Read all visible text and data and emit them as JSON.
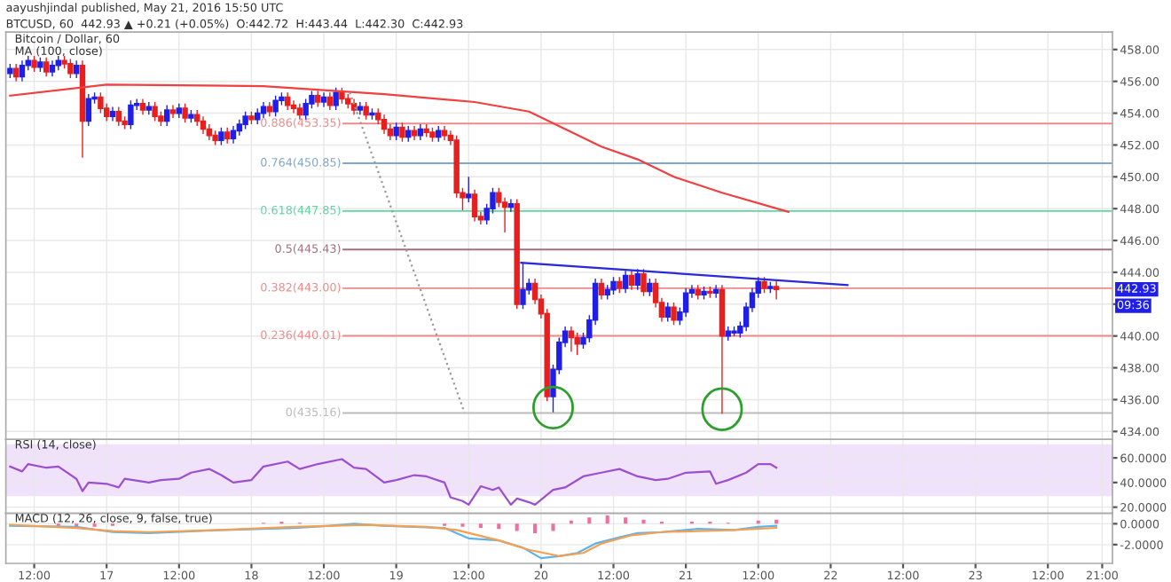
{
  "chart_data": [
    {
      "type": "candlestick",
      "title": "Bitcoin / Dollar, 60",
      "subtitle": "MA (100, close)",
      "annotations": [
        "aayushjindal published, May 21, 2016 15:50 UTC",
        "BTCUSD, 60  442.93 ▲ +0.21 (+0.05%)  O:442.72  H:443.44  L:442.30  C:442.93",
        {
          "text": "442.93",
          "y": 442.93
        },
        {
          "text": "09:36",
          "y": 441.9
        }
      ],
      "x": [
        "2016-05-16T08:00",
        "2016-05-16T09:00",
        "2016-05-16T10:00",
        "2016-05-16T11:00",
        "2016-05-16T12:00",
        "2016-05-16T13:00",
        "2016-05-16T14:00",
        "2016-05-16T15:00",
        "2016-05-16T16:00",
        "2016-05-16T17:00",
        "2016-05-16T18:00",
        "2016-05-16T19:00",
        "2016-05-16T20:00",
        "2016-05-16T21:00",
        "2016-05-16T22:00",
        "2016-05-16T23:00",
        "2016-05-17T00:00",
        "2016-05-17T01:00",
        "2016-05-17T02:00",
        "2016-05-17T03:00",
        "2016-05-17T04:00",
        "2016-05-17T05:00",
        "2016-05-17T06:00",
        "2016-05-17T07:00",
        "2016-05-17T08:00",
        "2016-05-17T09:00",
        "2016-05-17T10:00",
        "2016-05-17T11:00",
        "2016-05-17T12:00",
        "2016-05-17T13:00",
        "2016-05-17T14:00",
        "2016-05-17T15:00",
        "2016-05-17T16:00",
        "2016-05-17T17:00",
        "2016-05-17T18:00",
        "2016-05-17T19:00",
        "2016-05-17T20:00",
        "2016-05-17T21:00",
        "2016-05-17T22:00",
        "2016-05-17T23:00",
        "2016-05-18T00:00",
        "2016-05-18T01:00",
        "2016-05-18T02:00",
        "2016-05-18T03:00",
        "2016-05-18T04:00",
        "2016-05-18T05:00",
        "2016-05-18T06:00",
        "2016-05-18T07:00",
        "2016-05-18T08:00",
        "2016-05-18T09:00",
        "2016-05-18T10:00",
        "2016-05-18T11:00",
        "2016-05-18T12:00",
        "2016-05-18T13:00",
        "2016-05-18T14:00",
        "2016-05-18T15:00",
        "2016-05-18T16:00",
        "2016-05-18T17:00",
        "2016-05-18T18:00",
        "2016-05-18T19:00",
        "2016-05-18T20:00",
        "2016-05-18T21:00",
        "2016-05-18T22:00",
        "2016-05-18T23:00",
        "2016-05-19T00:00",
        "2016-05-19T01:00",
        "2016-05-19T02:00",
        "2016-05-19T03:00",
        "2016-05-19T04:00",
        "2016-05-19T05:00",
        "2016-05-19T06:00",
        "2016-05-19T07:00",
        "2016-05-19T08:00",
        "2016-05-19T09:00",
        "2016-05-19T10:00",
        "2016-05-19T11:00",
        "2016-05-19T12:00",
        "2016-05-19T13:00",
        "2016-05-19T14:00",
        "2016-05-19T15:00",
        "2016-05-19T16:00",
        "2016-05-19T17:00",
        "2016-05-19T18:00",
        "2016-05-19T19:00",
        "2016-05-19T20:00",
        "2016-05-19T21:00",
        "2016-05-19T22:00",
        "2016-05-19T23:00",
        "2016-05-20T00:00",
        "2016-05-20T01:00",
        "2016-05-20T02:00",
        "2016-05-20T03:00",
        "2016-05-20T04:00",
        "2016-05-20T05:00",
        "2016-05-20T06:00",
        "2016-05-20T07:00",
        "2016-05-20T08:00",
        "2016-05-20T09:00",
        "2016-05-20T10:00",
        "2016-05-20T11:00",
        "2016-05-20T12:00",
        "2016-05-20T13:00",
        "2016-05-20T14:00",
        "2016-05-20T15:00",
        "2016-05-20T16:00",
        "2016-05-20T17:00",
        "2016-05-20T18:00",
        "2016-05-20T19:00",
        "2016-05-20T20:00",
        "2016-05-20T21:00",
        "2016-05-20T22:00",
        "2016-05-20T23:00",
        "2016-05-21T00:00",
        "2016-05-21T01:00",
        "2016-05-21T02:00",
        "2016-05-21T03:00",
        "2016-05-21T04:00",
        "2016-05-21T05:00",
        "2016-05-21T06:00",
        "2016-05-21T07:00",
        "2016-05-21T08:00",
        "2016-05-21T09:00",
        "2016-05-21T10:00",
        "2016-05-21T11:00",
        "2016-05-21T12:00",
        "2016-05-21T13:00",
        "2016-05-21T14:00",
        "2016-05-21T15:00"
      ],
      "ohlc": [
        [
          456.5,
          457.1,
          456.2,
          456.8
        ],
        [
          456.8,
          457.1,
          456.0,
          456.3
        ],
        [
          456.3,
          457.3,
          456.0,
          457.0
        ],
        [
          457.0,
          457.6,
          456.7,
          457.3
        ],
        [
          457.3,
          457.6,
          456.6,
          456.9
        ],
        [
          456.9,
          457.5,
          456.6,
          457.2
        ],
        [
          457.2,
          457.5,
          456.3,
          456.6
        ],
        [
          456.6,
          457.3,
          456.3,
          457.0
        ],
        [
          457.0,
          457.6,
          456.7,
          457.3
        ],
        [
          457.3,
          457.6,
          456.8,
          457.1
        ],
        [
          457.1,
          457.4,
          456.2,
          456.5
        ],
        [
          456.5,
          457.3,
          456.2,
          457.0
        ],
        [
          457.0,
          457.3,
          451.2,
          453.5
        ],
        [
          453.5,
          455.2,
          453.2,
          454.9
        ],
        [
          454.9,
          455.3,
          454.6,
          455.0
        ],
        [
          455.0,
          455.3,
          454.0,
          454.3
        ],
        [
          454.3,
          454.6,
          453.5,
          453.8
        ],
        [
          453.8,
          454.4,
          453.5,
          454.1
        ],
        [
          454.1,
          454.4,
          453.2,
          453.5
        ],
        [
          453.5,
          453.8,
          453.0,
          453.3
        ],
        [
          453.3,
          454.8,
          453.0,
          454.5
        ],
        [
          454.5,
          454.9,
          454.2,
          454.6
        ],
        [
          454.6,
          454.9,
          453.9,
          454.2
        ],
        [
          454.2,
          454.7,
          453.9,
          454.4
        ],
        [
          454.4,
          454.7,
          453.5,
          453.8
        ],
        [
          453.8,
          454.1,
          453.2,
          453.5
        ],
        [
          453.5,
          454.5,
          453.2,
          454.2
        ],
        [
          454.2,
          454.5,
          453.7,
          454.0
        ],
        [
          454.0,
          454.6,
          453.7,
          454.3
        ],
        [
          454.3,
          454.6,
          453.4,
          453.7
        ],
        [
          453.7,
          454.2,
          453.4,
          453.9
        ],
        [
          453.9,
          454.2,
          453.2,
          453.5
        ],
        [
          453.5,
          453.8,
          452.7,
          453.0
        ],
        [
          453.0,
          453.3,
          452.3,
          452.6
        ],
        [
          452.6,
          452.9,
          452.0,
          452.3
        ],
        [
          452.3,
          453.1,
          452.0,
          452.8
        ],
        [
          452.8,
          453.1,
          452.1,
          452.4
        ],
        [
          452.4,
          453.2,
          452.1,
          452.9
        ],
        [
          452.9,
          453.6,
          452.6,
          453.3
        ],
        [
          453.3,
          454.1,
          453.0,
          453.8
        ],
        [
          453.8,
          454.1,
          453.3,
          453.6
        ],
        [
          453.6,
          454.3,
          453.3,
          454.0
        ],
        [
          454.0,
          454.7,
          453.7,
          454.4
        ],
        [
          454.4,
          454.7,
          453.8,
          454.1
        ],
        [
          454.1,
          455.1,
          453.8,
          454.8
        ],
        [
          454.8,
          455.3,
          454.5,
          455.0
        ],
        [
          455.0,
          455.3,
          454.2,
          454.5
        ],
        [
          454.5,
          454.8,
          454.0,
          454.3
        ],
        [
          454.3,
          454.6,
          453.6,
          453.9
        ],
        [
          453.9,
          454.9,
          453.6,
          454.6
        ],
        [
          454.6,
          455.4,
          454.3,
          455.1
        ],
        [
          455.1,
          455.4,
          454.4,
          454.7
        ],
        [
          454.7,
          455.3,
          454.4,
          455.0
        ],
        [
          455.0,
          455.3,
          454.2,
          454.5
        ],
        [
          454.5,
          455.6,
          454.2,
          455.3
        ],
        [
          455.3,
          455.6,
          454.6,
          454.9
        ],
        [
          454.9,
          455.2,
          454.3,
          454.6
        ],
        [
          454.6,
          454.9,
          453.9,
          454.2
        ],
        [
          454.2,
          454.7,
          453.9,
          454.4
        ],
        [
          454.4,
          454.7,
          453.6,
          453.9
        ],
        [
          453.9,
          454.3,
          453.6,
          454.0
        ],
        [
          454.0,
          454.3,
          453.3,
          453.6
        ],
        [
          453.6,
          453.9,
          452.7,
          453.0
        ],
        [
          453.0,
          453.3,
          452.3,
          452.6
        ],
        [
          452.6,
          453.4,
          452.3,
          453.1
        ],
        [
          453.1,
          453.4,
          452.2,
          452.5
        ],
        [
          452.5,
          453.2,
          452.2,
          452.9
        ],
        [
          452.9,
          453.2,
          452.3,
          452.6
        ],
        [
          452.6,
          453.3,
          452.3,
          453.0
        ],
        [
          453.0,
          453.3,
          452.5,
          452.8
        ],
        [
          452.8,
          453.1,
          452.2,
          452.5
        ],
        [
          452.5,
          453.2,
          452.2,
          452.9
        ],
        [
          452.9,
          453.2,
          452.3,
          452.6
        ],
        [
          452.6,
          452.9,
          452.0,
          452.3
        ],
        [
          452.3,
          452.6,
          448.7,
          449.0
        ],
        [
          449.0,
          449.3,
          447.9,
          448.7
        ],
        [
          448.7,
          450.0,
          448.4,
          448.9
        ],
        [
          448.9,
          449.2,
          447.2,
          447.5
        ],
        [
          447.5,
          447.8,
          447.0,
          447.3
        ],
        [
          447.3,
          448.3,
          447.0,
          448.0
        ],
        [
          448.0,
          449.3,
          447.7,
          449.0
        ],
        [
          449.0,
          449.3,
          448.1,
          448.4
        ],
        [
          448.4,
          448.7,
          446.5,
          448.1
        ],
        [
          448.1,
          448.6,
          447.8,
          448.3
        ],
        [
          448.3,
          448.6,
          441.7,
          442.0
        ],
        [
          442.0,
          444.6,
          441.7,
          442.9
        ],
        [
          442.9,
          443.6,
          442.6,
          443.3
        ],
        [
          443.3,
          443.6,
          442.0,
          442.3
        ],
        [
          442.3,
          442.6,
          441.1,
          441.4
        ],
        [
          441.4,
          441.7,
          435.9,
          436.2
        ],
        [
          436.2,
          438.2,
          435.2,
          437.9
        ],
        [
          437.9,
          439.9,
          437.6,
          439.6
        ],
        [
          439.6,
          440.6,
          439.3,
          440.3
        ],
        [
          440.3,
          440.6,
          439.0,
          439.9
        ],
        [
          439.9,
          440.2,
          438.8,
          439.5
        ],
        [
          439.5,
          440.2,
          439.2,
          439.9
        ],
        [
          439.9,
          441.3,
          439.6,
          441.0
        ],
        [
          441.0,
          443.6,
          440.7,
          443.3
        ],
        [
          443.3,
          443.6,
          442.3,
          442.6
        ],
        [
          442.6,
          443.2,
          442.3,
          442.9
        ],
        [
          442.9,
          443.7,
          442.6,
          443.4
        ],
        [
          443.4,
          443.7,
          442.7,
          443.0
        ],
        [
          443.0,
          444.1,
          442.7,
          443.8
        ],
        [
          443.8,
          444.1,
          442.9,
          443.2
        ],
        [
          443.2,
          444.2,
          442.9,
          443.9
        ],
        [
          443.9,
          444.2,
          442.5,
          442.8
        ],
        [
          442.8,
          443.6,
          442.5,
          443.3
        ],
        [
          443.3,
          443.6,
          441.8,
          442.1
        ],
        [
          442.1,
          442.4,
          440.9,
          441.2
        ],
        [
          441.2,
          442.1,
          440.9,
          441.8
        ],
        [
          441.8,
          442.1,
          440.7,
          441.0
        ],
        [
          441.0,
          441.8,
          440.7,
          441.5
        ],
        [
          441.5,
          443.0,
          441.2,
          442.7
        ],
        [
          442.7,
          443.2,
          442.4,
          442.9
        ],
        [
          442.9,
          443.2,
          442.3,
          442.6
        ],
        [
          442.6,
          443.1,
          442.3,
          442.8
        ],
        [
          442.8,
          443.1,
          442.4,
          442.7
        ],
        [
          442.7,
          443.2,
          442.4,
          442.9
        ],
        [
          442.9,
          443.2,
          435.1,
          440.0
        ],
        [
          440.0,
          440.6,
          439.7,
          440.3
        ],
        [
          440.3,
          440.6,
          440.0,
          440.2
        ],
        [
          440.2,
          440.9,
          439.9,
          440.6
        ],
        [
          440.6,
          442.1,
          440.3,
          441.8
        ],
        [
          441.8,
          443.0,
          441.5,
          442.7
        ],
        [
          442.7,
          443.7,
          442.4,
          443.4
        ],
        [
          443.4,
          443.7,
          442.7,
          443.0
        ],
        [
          443.0,
          443.4,
          442.7,
          443.1
        ],
        [
          443.1,
          443.44,
          442.3,
          442.93
        ]
      ],
      "colors": [
        "#1f1fe6",
        "#e61f1f",
        "#1f1fe6",
        "#1f1fe6",
        "#e61f1f",
        "#1f1fe6",
        "#e61f1f",
        "#1f1fe6",
        "#1f1fe6",
        "#e61f1f",
        "#e61f1f",
        "#1f1fe6",
        "#e61f1f",
        "#1f1fe6",
        "#1f1fe6",
        "#e61f1f",
        "#e61f1f",
        "#1f1fe6",
        "#e61f1f",
        "#e61f1f",
        "#1f1fe6",
        "#1f1fe6",
        "#e61f1f",
        "#1f1fe6",
        "#e61f1f",
        "#e61f1f",
        "#1f1fe6",
        "#e61f1f",
        "#1f1fe6",
        "#e61f1f",
        "#1f1fe6",
        "#e61f1f",
        "#e61f1f",
        "#e61f1f",
        "#e61f1f",
        "#1f1fe6",
        "#e61f1f",
        "#1f1fe6",
        "#1f1fe6",
        "#1f1fe6",
        "#e61f1f",
        "#1f1fe6",
        "#1f1fe6",
        "#e61f1f",
        "#1f1fe6",
        "#1f1fe6",
        "#e61f1f",
        "#e61f1f",
        "#e61f1f",
        "#1f1fe6",
        "#1f1fe6",
        "#e61f1f",
        "#1f1fe6",
        "#e61f1f",
        "#1f1fe6",
        "#e61f1f",
        "#e61f1f",
        "#e61f1f",
        "#1f1fe6",
        "#e61f1f",
        "#1f1fe6",
        "#e61f1f",
        "#e61f1f",
        "#e61f1f",
        "#1f1fe6",
        "#e61f1f",
        "#1f1fe6",
        "#e61f1f",
        "#1f1fe6",
        "#e61f1f",
        "#e61f1f",
        "#1f1fe6",
        "#e61f1f",
        "#e61f1f",
        "#e61f1f",
        "#e61f1f",
        "#1f1fe6",
        "#e61f1f",
        "#e61f1f",
        "#1f1fe6",
        "#1f1fe6",
        "#e61f1f",
        "#e61f1f",
        "#1f1fe6",
        "#e61f1f",
        "#1f1fe6",
        "#1f1fe6",
        "#e61f1f",
        "#e61f1f",
        "#e61f1f",
        "#1f1fe6",
        "#1f1fe6",
        "#1f1fe6",
        "#e61f1f",
        "#e61f1f",
        "#1f1fe6",
        "#1f1fe6",
        "#1f1fe6",
        "#e61f1f",
        "#1f1fe6",
        "#1f1fe6",
        "#e61f1f",
        "#1f1fe6",
        "#e61f1f",
        "#1f1fe6",
        "#e61f1f",
        "#1f1fe6",
        "#e61f1f",
        "#e61f1f",
        "#1f1fe6",
        "#e61f1f",
        "#1f1fe6",
        "#1f1fe6",
        "#1f1fe6",
        "#e61f1f",
        "#1f1fe6",
        "#e61f1f",
        "#1f1fe6",
        "#e61f1f",
        "#1f1fe6",
        "#1f1fe6",
        "#1f1fe6",
        "#1f1fe6",
        "#1f1fe6",
        "#1f1fe6",
        "#e61f1f",
        "#1f1fe6",
        "#e61f1f"
      ],
      "series": [
        {
          "type": "line",
          "color": "#f04040",
          "x": [
            "2016-05-16T08:00",
            "2016-05-17T00:00",
            "2016-05-18T02:00",
            "2016-05-18T22:00",
            "2016-05-19T13:00",
            "2016-05-19T22:00",
            "2016-05-20T04:00",
            "2016-05-20T10:00",
            "2016-05-20T16:00",
            "2016-05-20T22:00",
            "2016-05-21T06:00",
            "2016-05-21T17:00"
          ],
          "values": [
            455.1,
            455.8,
            455.7,
            455.2,
            454.7,
            454.1,
            453.0,
            451.9,
            451.1,
            450.0,
            449.0,
            447.8
          ]
        },
        {
          "type": "line",
          "color": "#2a2ad8",
          "x": [
            "2016-05-19T20:42",
            "2016-05-22T02:48"
          ],
          "values": [
            444.6,
            443.2
          ]
        },
        {
          "type": "line",
          "color": "#999999",
          "line_style": "dotted",
          "x": [
            "2016-05-18T16:18",
            "2016-05-19T11:18"
          ],
          "values": [
            455.3,
            435.2
          ]
        }
      ],
      "ref_lines": [
        {
          "axis": "y",
          "value": 453.35,
          "label": "0.886(453.35)",
          "color": "#f08a8a"
        },
        {
          "axis": "y",
          "value": 450.85,
          "label": "0.764(450.85)",
          "color": "#7fa8cc"
        },
        {
          "axis": "y",
          "value": 447.85,
          "label": "0.618(447.85)",
          "color": "#5fd6a0"
        },
        {
          "axis": "y",
          "value": 445.43,
          "label": "0.5(445.43)",
          "color": "#a07080"
        },
        {
          "axis": "y",
          "value": 443.0,
          "label": "0.382(443.00)",
          "color": "#f08a8a"
        },
        {
          "axis": "y",
          "value": 440.01,
          "label": "0.236(440.01)",
          "color": "#f08a8a"
        },
        {
          "axis": "y",
          "value": 435.16,
          "label": "0(435.16)",
          "color": "#bbbbbb"
        }
      ],
      "xlim": [
        "2016-05-16T07:18",
        "2016-05-23T22:42"
      ],
      "ylim": [
        433.5,
        459.1
      ],
      "xticks": [
        {
          "value": "2016-05-16T12:00",
          "label": null
        },
        {
          "value": "2016-05-17T00:00",
          "label": null
        },
        {
          "value": "2016-05-17T12:00",
          "label": null
        },
        {
          "value": "2016-05-18T00:00",
          "label": null
        },
        {
          "value": "2016-05-18T12:00",
          "label": null
        },
        {
          "value": "2016-05-19T00:00",
          "label": null
        },
        {
          "value": "2016-05-19T12:00",
          "label": null
        },
        {
          "value": "2016-05-20T00:00",
          "label": null
        },
        {
          "value": "2016-05-20T12:00",
          "label": null
        },
        {
          "value": "2016-05-21T00:00",
          "label": null
        },
        {
          "value": "2016-05-21T12:00",
          "label": null
        },
        {
          "value": "2016-05-22T00:00",
          "label": null
        },
        {
          "value": "2016-05-22T12:00",
          "label": null
        },
        {
          "value": "2016-05-23T00:00",
          "label": null
        },
        {
          "value": "2016-05-23T12:00",
          "label": null
        },
        {
          "value": "2016-05-23T21:00",
          "label": null
        }
      ],
      "yticks": [
        {
          "value": 434,
          "label": "434.00"
        },
        {
          "value": 436,
          "label": "436.00"
        },
        {
          "value": 438,
          "label": "438.00"
        },
        {
          "value": 440,
          "label": "440.00"
        },
        {
          "value": 442,
          "label": null
        },
        {
          "value": 444,
          "label": "444.00"
        },
        {
          "value": 446,
          "label": "446.00"
        },
        {
          "value": 448,
          "label": "448.00"
        },
        {
          "value": 450,
          "label": "450.00"
        },
        {
          "value": 452,
          "label": "452.00"
        },
        {
          "value": 454,
          "label": "454.00"
        },
        {
          "value": 456,
          "label": "456.00"
        },
        {
          "value": 458,
          "label": "458.00"
        }
      ],
      "tick_labels": "y",
      "grid": true,
      "legend": false
    },
    {
      "type": "line",
      "title": "RSI (14, close)",
      "series": [
        {
          "color": "#9c4fd0",
          "x": [
            "2016-05-16T08:00",
            "2016-05-16T10:00",
            "2016-05-16T11:00",
            "2016-05-16T14:00",
            "2016-05-16T16:00",
            "2016-05-16T19:00",
            "2016-05-16T20:00",
            "2016-05-16T21:00",
            "2016-05-17T00:00",
            "2016-05-17T02:00",
            "2016-05-17T03:00",
            "2016-05-17T07:00",
            "2016-05-17T09:00",
            "2016-05-17T12:00",
            "2016-05-17T14:00",
            "2016-05-17T17:00",
            "2016-05-17T19:00",
            "2016-05-17T21:00",
            "2016-05-18T00:00",
            "2016-05-18T02:00",
            "2016-05-18T06:00",
            "2016-05-18T08:00",
            "2016-05-18T11:00",
            "2016-05-18T15:00",
            "2016-05-18T17:00",
            "2016-05-18T19:00",
            "2016-05-18T22:00",
            "2016-05-19T00:00",
            "2016-05-19T03:00",
            "2016-05-19T05:00",
            "2016-05-19T08:00",
            "2016-05-19T09:00",
            "2016-05-19T11:00",
            "2016-05-19T12:00",
            "2016-05-19T14:00",
            "2016-05-19T16:00",
            "2016-05-19T17:00",
            "2016-05-19T19:00",
            "2016-05-19T20:00",
            "2016-05-19T22:00",
            "2016-05-19T23:00",
            "2016-05-20T02:00",
            "2016-05-20T04:00",
            "2016-05-20T07:00",
            "2016-05-20T10:00",
            "2016-05-20T13:00",
            "2016-05-20T16:00",
            "2016-05-20T19:00",
            "2016-05-20T21:00",
            "2016-05-21T00:00",
            "2016-05-21T04:00",
            "2016-05-21T05:00",
            "2016-05-21T07:00",
            "2016-05-21T10:00",
            "2016-05-21T12:00",
            "2016-05-21T14:00",
            "2016-05-21T15:00"
          ],
          "values": [
            53,
            49,
            55,
            52,
            53,
            43,
            33,
            40,
            39,
            36,
            43,
            40,
            42,
            43,
            48,
            51,
            46,
            40,
            42,
            53,
            57,
            51,
            55,
            59,
            52,
            51,
            40,
            42,
            46,
            45,
            40,
            28,
            25,
            22,
            37,
            34,
            36,
            22,
            27,
            24,
            22,
            34,
            36,
            45,
            48,
            51,
            45,
            42,
            43,
            48,
            49,
            39,
            42,
            48,
            55,
            55,
            52
          ]
        }
      ],
      "bands": [
        {
          "axis": "y",
          "from": 30,
          "to": 70,
          "color": "#f1e2fb"
        }
      ],
      "xlim": [
        "2016-05-16T07:18",
        "2016-05-23T22:42"
      ],
      "ylim": [
        15,
        75
      ],
      "xticks": [
        {
          "value": "2016-05-16T12:00",
          "label": null
        },
        {
          "value": "2016-05-17T00:00",
          "label": null
        },
        {
          "value": "2016-05-17T12:00",
          "label": null
        },
        {
          "value": "2016-05-18T00:00",
          "label": null
        },
        {
          "value": "2016-05-18T12:00",
          "label": null
        },
        {
          "value": "2016-05-19T00:00",
          "label": null
        },
        {
          "value": "2016-05-19T12:00",
          "label": null
        },
        {
          "value": "2016-05-20T00:00",
          "label": null
        },
        {
          "value": "2016-05-20T12:00",
          "label": null
        },
        {
          "value": "2016-05-21T00:00",
          "label": null
        },
        {
          "value": "2016-05-21T12:00",
          "label": null
        },
        {
          "value": "2016-05-22T00:00",
          "label": null
        },
        {
          "value": "2016-05-22T12:00",
          "label": null
        },
        {
          "value": "2016-05-23T00:00",
          "label": null
        },
        {
          "value": "2016-05-23T12:00",
          "label": null
        },
        {
          "value": "2016-05-23T21:00",
          "label": null
        }
      ],
      "yticks": [
        {
          "value": 20,
          "label": "20.0000"
        },
        {
          "value": 40,
          "label": "40.0000"
        },
        {
          "value": 60,
          "label": "60.0000"
        }
      ],
      "tick_labels": "y",
      "grid": true,
      "legend": false
    },
    {
      "type": "line",
      "title": "MACD (12, 26, close, 9, false, true)",
      "series": [
        {
          "type": "bar",
          "color": "#f06ea0",
          "x": [
            "2016-05-16T16:00",
            "2016-05-16T19:00",
            "2016-05-16T22:00",
            "2016-05-17T01:00",
            "2016-05-18T02:00",
            "2016-05-18T05:00",
            "2016-05-18T08:00",
            "2016-05-19T08:00",
            "2016-05-19T11:00",
            "2016-05-19T14:00",
            "2016-05-19T17:00",
            "2016-05-19T20:00",
            "2016-05-19T23:00",
            "2016-05-20T02:00",
            "2016-05-20T05:00",
            "2016-05-20T08:00",
            "2016-05-20T11:00",
            "2016-05-20T14:00",
            "2016-05-20T17:00",
            "2016-05-20T20:00",
            "2016-05-21T01:00",
            "2016-05-21T04:00",
            "2016-05-21T07:00",
            "2016-05-21T12:00",
            "2016-05-21T15:00"
          ],
          "values": [
            -0.2,
            -0.3,
            -0.3,
            -0.2,
            0.1,
            0.2,
            0.1,
            -0.2,
            -0.3,
            -0.4,
            -0.5,
            -0.7,
            -0.9,
            -0.7,
            0.3,
            0.6,
            0.8,
            0.6,
            0.4,
            0.2,
            0.2,
            0.2,
            0.1,
            0.3,
            0.4
          ]
        },
        {
          "type": "line",
          "color": "#5bb4f0",
          "x": [
            "2016-05-16T08:00",
            "2016-05-16T19:00",
            "2016-05-17T01:00",
            "2016-05-17T07:00",
            "2016-05-17T19:00",
            "2016-05-18T07:00",
            "2016-05-18T13:00",
            "2016-05-18T17:00",
            "2016-05-18T22:00",
            "2016-05-19T03:00",
            "2016-05-19T08:00",
            "2016-05-19T10:00",
            "2016-05-19T12:00",
            "2016-05-19T17:00",
            "2016-05-19T21:00",
            "2016-05-20T00:00",
            "2016-05-20T03:00",
            "2016-05-20T06:00",
            "2016-05-20T09:00",
            "2016-05-20T13:00",
            "2016-05-20T16:00",
            "2016-05-20T20:00",
            "2016-05-21T02:00",
            "2016-05-21T08:00",
            "2016-05-21T12:00",
            "2016-05-21T15:00"
          ],
          "values": [
            -0.2,
            -0.3,
            -0.8,
            -0.9,
            -0.6,
            -0.4,
            -0.2,
            0.0,
            -0.2,
            -0.3,
            -0.4,
            -0.9,
            -1.4,
            -1.6,
            -2.3,
            -3.3,
            -3.1,
            -2.8,
            -1.9,
            -1.3,
            -0.9,
            -0.8,
            -0.5,
            -0.6,
            -0.3,
            -0.2
          ]
        },
        {
          "type": "line",
          "color": "#f5a050",
          "x": [
            "2016-05-16T08:00",
            "2016-05-16T19:00",
            "2016-05-17T01:00",
            "2016-05-17T07:00",
            "2016-05-17T19:00",
            "2016-05-18T07:00",
            "2016-05-18T19:00",
            "2016-05-19T05:00",
            "2016-05-19T10:00",
            "2016-05-19T17:00",
            "2016-05-19T22:00",
            "2016-05-20T03:00",
            "2016-05-20T07:00",
            "2016-05-20T10:00",
            "2016-05-20T15:00",
            "2016-05-20T20:00",
            "2016-05-21T02:00",
            "2016-05-21T08:00",
            "2016-05-21T15:00"
          ],
          "values": [
            -0.1,
            -0.4,
            -0.7,
            -0.8,
            -0.6,
            -0.3,
            -0.1,
            -0.3,
            -0.6,
            -1.6,
            -2.5,
            -3.1,
            -2.8,
            -1.9,
            -1.1,
            -0.8,
            -0.7,
            -0.6,
            -0.4
          ]
        }
      ],
      "xlim": [
        "2016-05-16T07:18",
        "2016-05-23T22:42"
      ],
      "ylim": [
        -3.8,
        1.0
      ],
      "xticks": [
        {
          "value": "2016-05-16T12:00",
          "label": "12:00"
        },
        {
          "value": "2016-05-17T00:00",
          "label": "17"
        },
        {
          "value": "2016-05-17T12:00",
          "label": "12:00"
        },
        {
          "value": "2016-05-18T00:00",
          "label": "18"
        },
        {
          "value": "2016-05-18T12:00",
          "label": "12:00"
        },
        {
          "value": "2016-05-19T00:00",
          "label": "19"
        },
        {
          "value": "2016-05-19T12:00",
          "label": "12:00"
        },
        {
          "value": "2016-05-20T00:00",
          "label": "20"
        },
        {
          "value": "2016-05-20T12:00",
          "label": "12:00"
        },
        {
          "value": "2016-05-21T00:00",
          "label": "21"
        },
        {
          "value": "2016-05-21T12:00",
          "label": "12:00"
        },
        {
          "value": "2016-05-22T00:00",
          "label": "22"
        },
        {
          "value": "2016-05-22T12:00",
          "label": "12:00"
        },
        {
          "value": "2016-05-23T00:00",
          "label": "23"
        },
        {
          "value": "2016-05-23T12:00",
          "label": "12:00"
        },
        {
          "value": "2016-05-23T21:00",
          "label": "21:00"
        }
      ],
      "yticks": [
        {
          "value": -2,
          "label": "-2.0000"
        },
        {
          "value": 0,
          "label": "0.0000"
        }
      ],
      "grid": true,
      "legend": false
    }
  ]
}
